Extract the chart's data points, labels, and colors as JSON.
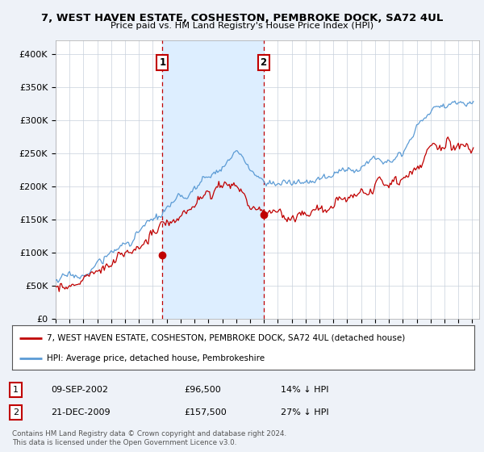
{
  "title": "7, WEST HAVEN ESTATE, COSHESTON, PEMBROKE DOCK, SA72 4UL",
  "subtitle": "Price paid vs. HM Land Registry's House Price Index (HPI)",
  "legend_line1": "7, WEST HAVEN ESTATE, COSHESTON, PEMBROKE DOCK, SA72 4UL (detached house)",
  "legend_line2": "HPI: Average price, detached house, Pembrokeshire",
  "sale1_label": "1",
  "sale1_date": "09-SEP-2002",
  "sale1_price": "£96,500",
  "sale1_pct": "14% ↓ HPI",
  "sale2_label": "2",
  "sale2_date": "21-DEC-2009",
  "sale2_price": "£157,500",
  "sale2_pct": "27% ↓ HPI",
  "footer": "Contains HM Land Registry data © Crown copyright and database right 2024.\nThis data is licensed under the Open Government Licence v3.0.",
  "hpi_color": "#5b9bd5",
  "price_color": "#c00000",
  "sale_line_color": "#c00000",
  "shade_color": "#ddeeff",
  "background_color": "#eef2f8",
  "plot_bg_color": "#ffffff",
  "ylim": [
    0,
    420000
  ],
  "yticks": [
    0,
    50000,
    100000,
    150000,
    200000,
    250000,
    300000,
    350000,
    400000
  ],
  "ytick_labels": [
    "£0",
    "£50K",
    "£100K",
    "£150K",
    "£200K",
    "£250K",
    "£300K",
    "£350K",
    "£400K"
  ],
  "sale1_x": 2002.69,
  "sale1_y": 96500,
  "sale2_x": 2009.97,
  "sale2_y": 157500,
  "xmin": 1995,
  "xmax": 2025.5
}
